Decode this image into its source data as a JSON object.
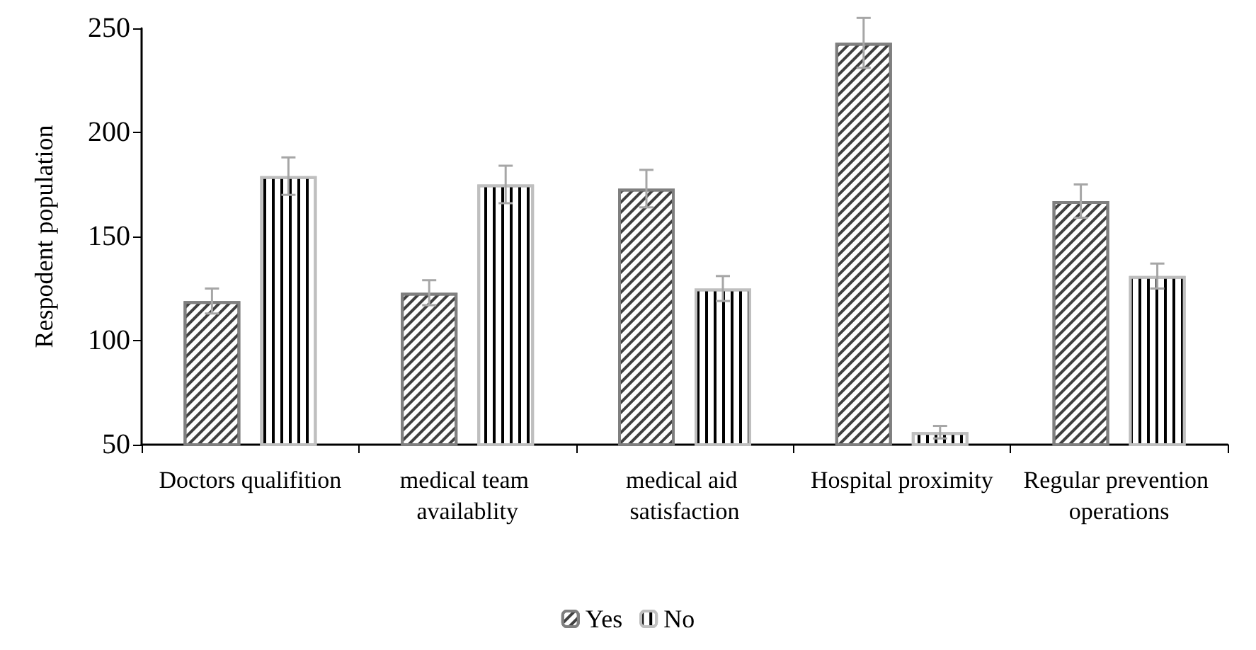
{
  "chart_data": {
    "type": "bar",
    "ylabel": "Respodent population",
    "categories": [
      "Doctors qualifition",
      "medical team availablity",
      "medical aid satisfaction",
      "Hospital proximity",
      "Regular prevention operations"
    ],
    "series": [
      {
        "name": "Yes",
        "color": "#7f7f7f",
        "values": [
          119,
          123,
          173,
          243,
          167
        ],
        "errors": [
          6,
          6,
          9,
          12,
          8
        ]
      },
      {
        "name": "No",
        "color": "#bfbfbf",
        "values": [
          179,
          175,
          125,
          56,
          131
        ],
        "errors": [
          9,
          9,
          6,
          3,
          6
        ]
      }
    ],
    "ylim": [
      50,
      250
    ],
    "yticks": [
      50,
      100,
      150,
      200,
      250
    ],
    "grid": false,
    "legend": "bottom"
  }
}
